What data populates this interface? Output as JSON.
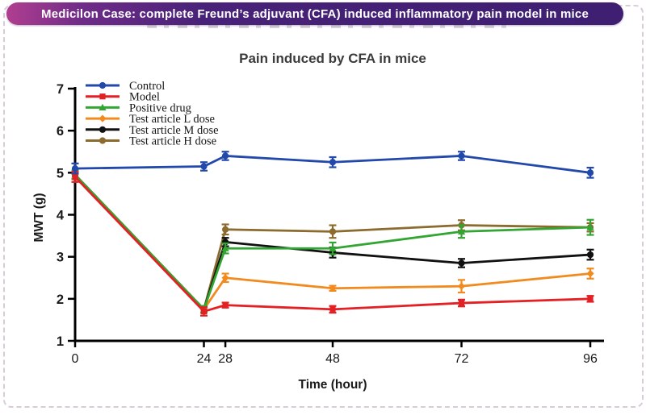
{
  "banner": {
    "title": "Medicilon Case: complete Freund’s adjuvant (CFA) induced inflammatory pain model in mice",
    "background_gradient": [
      "#b13e90",
      "#3e1f72"
    ],
    "text_color": "#ffffff"
  },
  "chart_data": {
    "type": "line",
    "title": "Pain induced by CFA in mice",
    "xlabel": "Time (hour)",
    "ylabel": "MWT (g)",
    "x": [
      0,
      24,
      28,
      48,
      72,
      96
    ],
    "xticks": [
      "0",
      "24",
      "28",
      "48",
      "72",
      "96"
    ],
    "yticks": [
      "1",
      "2",
      "3",
      "4",
      "5",
      "6",
      "7"
    ],
    "xlim": [
      0,
      96
    ],
    "ylim": [
      1,
      7
    ],
    "grid": false,
    "error_bars": true,
    "legend_position": "upper-left-inside",
    "series": [
      {
        "name": "Control",
        "color": "#2148aa",
        "marker": "circle",
        "values": [
          5.1,
          5.15,
          5.4,
          5.25,
          5.4,
          5.0
        ],
        "errors": [
          0.12,
          0.1,
          0.1,
          0.12,
          0.1,
          0.12
        ]
      },
      {
        "name": "Model",
        "color": "#e32125",
        "marker": "square",
        "values": [
          4.9,
          1.7,
          1.85,
          1.75,
          1.9,
          2.0
        ],
        "errors": [
          0.12,
          0.1,
          0.06,
          0.08,
          0.08,
          0.07
        ]
      },
      {
        "name": "Positive drug",
        "color": "#33a532",
        "marker": "triangle",
        "values": [
          4.95,
          1.75,
          3.2,
          3.2,
          3.6,
          3.7
        ],
        "errors": [
          0.1,
          0.08,
          0.12,
          0.14,
          0.15,
          0.18
        ]
      },
      {
        "name": "Test article L dose",
        "color": "#f28b1f",
        "marker": "diamond",
        "values": [
          4.95,
          1.75,
          2.5,
          2.25,
          2.3,
          2.6
        ],
        "errors": [
          0.1,
          0.08,
          0.1,
          0.06,
          0.15,
          0.12
        ]
      },
      {
        "name": "Test article M dose",
        "color": "#111111",
        "marker": "circle",
        "values": [
          4.95,
          1.75,
          3.35,
          3.1,
          2.85,
          3.05
        ],
        "errors": [
          0.1,
          0.08,
          0.1,
          0.12,
          0.1,
          0.12
        ]
      },
      {
        "name": "Test article H dose",
        "color": "#8c6b2e",
        "marker": "circle",
        "values": [
          4.95,
          1.75,
          3.65,
          3.6,
          3.75,
          3.7
        ],
        "errors": [
          0.1,
          0.08,
          0.12,
          0.15,
          0.12,
          0.1
        ]
      }
    ]
  }
}
